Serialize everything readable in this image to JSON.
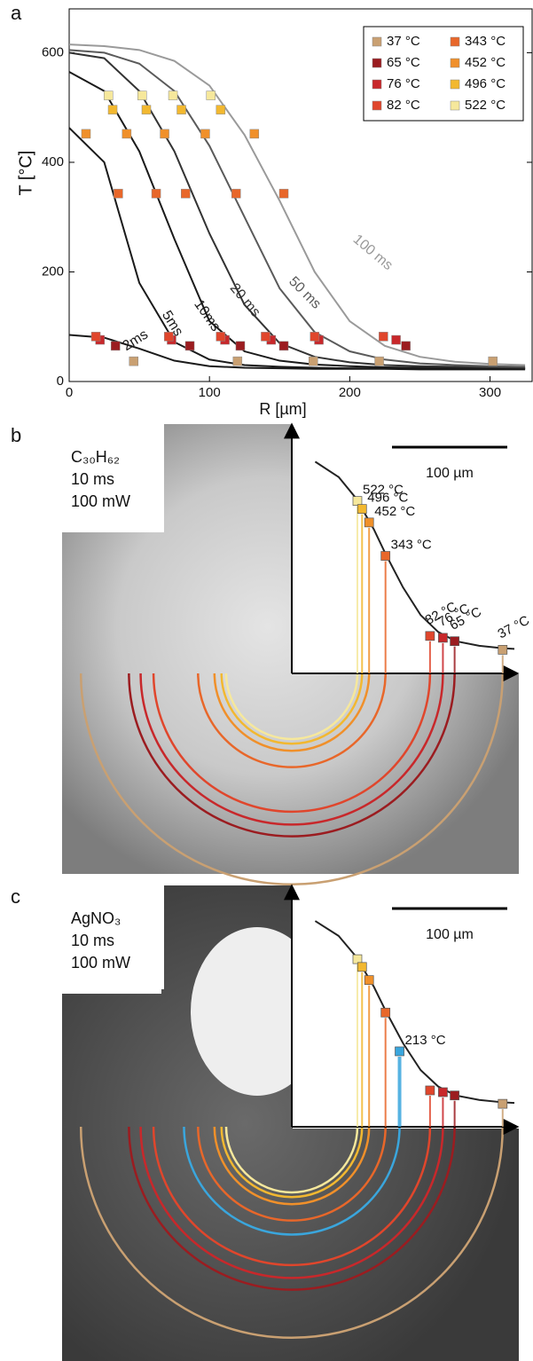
{
  "chart_data": [
    {
      "type": "line",
      "label": "a",
      "xlabel": "R [µm]",
      "ylabel": "T [°C]",
      "xlim": [
        0,
        330
      ],
      "ylim": [
        0,
        680
      ],
      "xticks": [
        0,
        100,
        200,
        300
      ],
      "yticks": [
        0,
        200,
        400,
        600
      ],
      "legend": "upper right",
      "curve_x": [
        0,
        25,
        50,
        75,
        100,
        125,
        150,
        175,
        200,
        225,
        250,
        275,
        300,
        325
      ],
      "curves": [
        {
          "name": "2ms",
          "color": "#1a1a1a",
          "values": [
            85,
            80,
            60,
            38,
            28,
            25,
            24,
            23,
            23,
            23,
            22,
            22,
            22,
            22
          ]
        },
        {
          "name": "5ms",
          "color": "#1a1a1a",
          "values": [
            463,
            400,
            180,
            72,
            40,
            30,
            27,
            25,
            24,
            24,
            23,
            23,
            23,
            23
          ]
        },
        {
          "name": "10ms",
          "color": "#1a1a1a",
          "values": [
            565,
            530,
            420,
            260,
            110,
            55,
            38,
            31,
            28,
            26,
            25,
            25,
            24,
            24
          ]
        },
        {
          "name": "20 ms",
          "color": "#333333",
          "values": [
            600,
            590,
            530,
            420,
            270,
            140,
            70,
            45,
            35,
            30,
            28,
            27,
            26,
            25
          ]
        },
        {
          "name": "50 ms",
          "color": "#5a5a5a",
          "values": [
            605,
            600,
            580,
            530,
            430,
            300,
            170,
            90,
            55,
            40,
            33,
            30,
            28,
            27
          ]
        },
        {
          "name": "100 ms",
          "color": "#9a9a9a",
          "values": [
            615,
            612,
            605,
            585,
            540,
            450,
            330,
            200,
            110,
            65,
            45,
            36,
            32,
            30
          ]
        }
      ],
      "series": [
        {
          "name": "37 °C",
          "color": "#c9a072",
          "x": [
            46,
            120,
            174,
            221,
            302
          ],
          "values": [
            37,
            37,
            37,
            37,
            37
          ]
        },
        {
          "name": "65 °C",
          "color": "#9b1c20",
          "x": [
            33,
            86,
            122,
            153,
            240
          ],
          "values": [
            65,
            65,
            65,
            65,
            65
          ]
        },
        {
          "name": "76 °C",
          "color": "#c8282b",
          "x": [
            22,
            73,
            111,
            144,
            178,
            233
          ],
          "values": [
            76,
            76,
            76,
            76,
            76,
            76
          ]
        },
        {
          "name": "82 °C",
          "color": "#e0462c",
          "x": [
            19,
            71,
            108,
            140,
            175,
            224
          ],
          "values": [
            82,
            82,
            82,
            82,
            82,
            82
          ]
        },
        {
          "name": "343 °C",
          "color": "#e8672a",
          "x": [
            35,
            62,
            83,
            119,
            153
          ],
          "values": [
            343,
            343,
            343,
            343,
            343
          ]
        },
        {
          "name": "452 °C",
          "color": "#f0902a",
          "x": [
            12,
            41,
            68,
            97,
            132
          ],
          "values": [
            452,
            452,
            452,
            452,
            452
          ]
        },
        {
          "name": "496 °C",
          "color": "#f2b830",
          "x": [
            31,
            55,
            80,
            108
          ],
          "values": [
            496,
            496,
            496,
            496
          ]
        },
        {
          "name": "522 °C",
          "color": "#f6e89c",
          "x": [
            28,
            52,
            74,
            101
          ],
          "values": [
            522,
            522,
            522,
            522
          ]
        }
      ]
    },
    {
      "type": "scatter",
      "label": "b",
      "sample": "C₃₀H₆₂",
      "duration": "10 ms",
      "power": "100 mW",
      "scale_bar": "100 µm",
      "xlim": [
        0,
        190
      ],
      "ylim": [
        -40,
        680
      ],
      "fit_x": [
        20,
        40,
        55,
        70,
        80,
        95,
        110,
        125,
        140,
        160,
        180,
        190
      ],
      "fit_values": [
        650,
        600,
        530,
        430,
        350,
        240,
        150,
        95,
        65,
        50,
        42,
        40
      ],
      "x": [
        56,
        60,
        66,
        80,
        118,
        129,
        139,
        180
      ],
      "values": [
        522,
        496,
        452,
        343,
        82,
        76,
        65,
        37
      ],
      "value_labels": [
        "522 °C",
        "496 °C",
        "452 °C",
        "343 °C",
        "82 °C",
        "76 °C",
        "65 °C",
        "37 °C"
      ],
      "colors": [
        "#f6e89c",
        "#f2b830",
        "#f0902a",
        "#e8672a",
        "#e0462c",
        "#c8282b",
        "#9b1c20",
        "#c9a072"
      ]
    },
    {
      "type": "scatter",
      "label": "c",
      "sample": "AgNO₃",
      "duration": "10 ms",
      "power": "100 mW",
      "scale_bar": "100 µm",
      "xlim": [
        0,
        190
      ],
      "ylim": [
        -40,
        680
      ],
      "fit_x": [
        20,
        40,
        55,
        70,
        80,
        95,
        110,
        125,
        140,
        160,
        180,
        190
      ],
      "fit_values": [
        650,
        600,
        530,
        430,
        350,
        240,
        150,
        95,
        65,
        50,
        42,
        40
      ],
      "x": [
        56,
        60,
        66,
        80,
        92,
        118,
        129,
        139,
        180
      ],
      "values": [
        522,
        496,
        452,
        343,
        213,
        82,
        76,
        65,
        37
      ],
      "value_labels": [
        null,
        null,
        null,
        null,
        "213 °C",
        null,
        null,
        null,
        null
      ],
      "colors": [
        "#f6e89c",
        "#f2b830",
        "#f0902a",
        "#e8672a",
        "#3aa6dd",
        "#e0462c",
        "#c8282b",
        "#9b1c20",
        "#c9a072"
      ]
    }
  ]
}
